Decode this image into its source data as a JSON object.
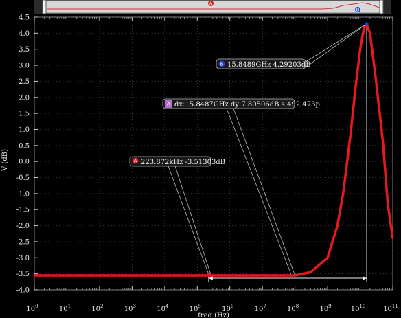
{
  "chart_data": {
    "type": "line",
    "title": "",
    "xlabel": "freq (Hz)",
    "ylabel": "V (dB)",
    "xscale": "log",
    "xlim": [
      1,
      100000000000
    ],
    "ylim": [
      -4.0,
      4.5
    ],
    "grid": true,
    "line_color": "#e8191a",
    "x_ticks": [
      {
        "exp": "0",
        "value": 1
      },
      {
        "exp": "1",
        "value": 10
      },
      {
        "exp": "2",
        "value": 100
      },
      {
        "exp": "3",
        "value": 1000
      },
      {
        "exp": "4",
        "value": 10000
      },
      {
        "exp": "5",
        "value": 100000
      },
      {
        "exp": "6",
        "value": 1000000
      },
      {
        "exp": "7",
        "value": 10000000
      },
      {
        "exp": "8",
        "value": 100000000
      },
      {
        "exp": "9",
        "value": 1000000000
      },
      {
        "exp": "10",
        "value": 10000000000
      },
      {
        "exp": "11",
        "value": 100000000000
      }
    ],
    "y_ticks": [
      4.5,
      4.0,
      3.5,
      3.0,
      2.5,
      2.0,
      1.5,
      1.0,
      0.5,
      0.0,
      -0.5,
      -1.0,
      -1.5,
      -2.0,
      -2.5,
      -3.0,
      -3.5,
      -4.0
    ],
    "y_tick_labels": [
      "4.5",
      "4.0",
      "3.5",
      "3.0",
      "2.5",
      "2.0",
      "1.5",
      "1.0",
      "0.5",
      "0.0",
      "-0.5",
      "-1.0",
      "-1.5",
      "-2.0",
      "-2.5",
      "-3.0",
      "-3.5",
      "-4.0"
    ],
    "series": [
      {
        "x": [
          1,
          100000,
          100000000,
          300000000,
          1000000000,
          2000000000,
          3000000000,
          5000000000,
          7000000000,
          10000000000,
          13000000000,
          15848900000,
          20000000000,
          30000000000,
          50000000000,
          70000000000,
          100000000000
        ],
        "y": [
          -3.55,
          -3.55,
          -3.55,
          -3.45,
          -3.0,
          -2.0,
          -1.0,
          0.8,
          2.2,
          3.5,
          4.15,
          4.29,
          4.0,
          2.6,
          0.6,
          -1.3,
          -2.4
        ]
      }
    ],
    "markers": [
      {
        "id": "A",
        "x": 223872,
        "y": -3.51303,
        "label": "223.872kHz -3.51303dB",
        "color": "#d42020"
      },
      {
        "id": "B",
        "x": 15848900000,
        "y": 4.29203,
        "label": "15.8489GHz 4.29203dB",
        "color": "#1f3fd8"
      }
    ],
    "delta": {
      "symbol": "Δ",
      "label": "dx:15.8487GHz dy:7.80506dB s:492.473p",
      "color": "#b46ec8"
    }
  }
}
